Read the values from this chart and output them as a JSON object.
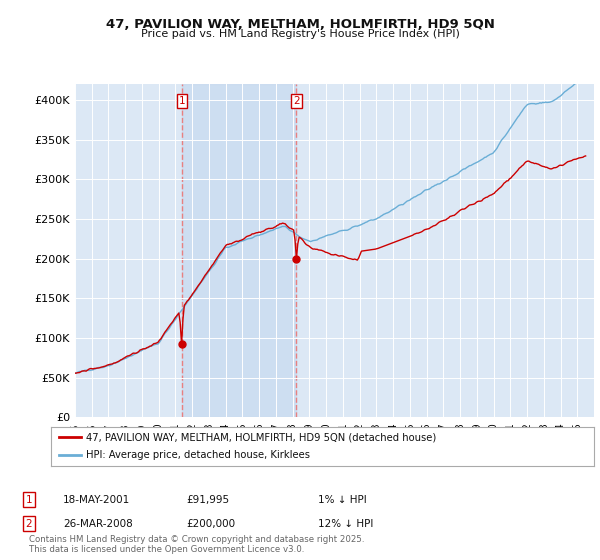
{
  "title1": "47, PAVILION WAY, MELTHAM, HOLMFIRTH, HD9 5QN",
  "title2": "Price paid vs. HM Land Registry's House Price Index (HPI)",
  "ylim": [
    0,
    420000
  ],
  "yticks": [
    0,
    50000,
    100000,
    150000,
    200000,
    250000,
    300000,
    350000,
    400000
  ],
  "ytick_labels": [
    "£0",
    "£50K",
    "£100K",
    "£150K",
    "£200K",
    "£250K",
    "£300K",
    "£350K",
    "£400K"
  ],
  "background_color": "#ffffff",
  "plot_bg_color": "#dce8f5",
  "grid_color": "#ffffff",
  "red_line_color": "#cc0000",
  "blue_line_color": "#6aaed6",
  "vline_color": "#e88080",
  "shade_color": "#c8daf0",
  "sale1_date_num": 2001.38,
  "sale1_price": 91995,
  "sale1_label": "1",
  "sale2_date_num": 2008.23,
  "sale2_price": 200000,
  "sale2_label": "2",
  "legend_label1": "47, PAVILION WAY, MELTHAM, HOLMFIRTH, HD9 5QN (detached house)",
  "legend_label2": "HPI: Average price, detached house, Kirklees",
  "annotation1_date": "18-MAY-2001",
  "annotation1_price": "£91,995",
  "annotation1_hpi": "1% ↓ HPI",
  "annotation2_date": "26-MAR-2008",
  "annotation2_price": "£200,000",
  "annotation2_hpi": "12% ↓ HPI",
  "footnote": "Contains HM Land Registry data © Crown copyright and database right 2025.\nThis data is licensed under the Open Government Licence v3.0.",
  "xmin": 1995,
  "xmax": 2026
}
